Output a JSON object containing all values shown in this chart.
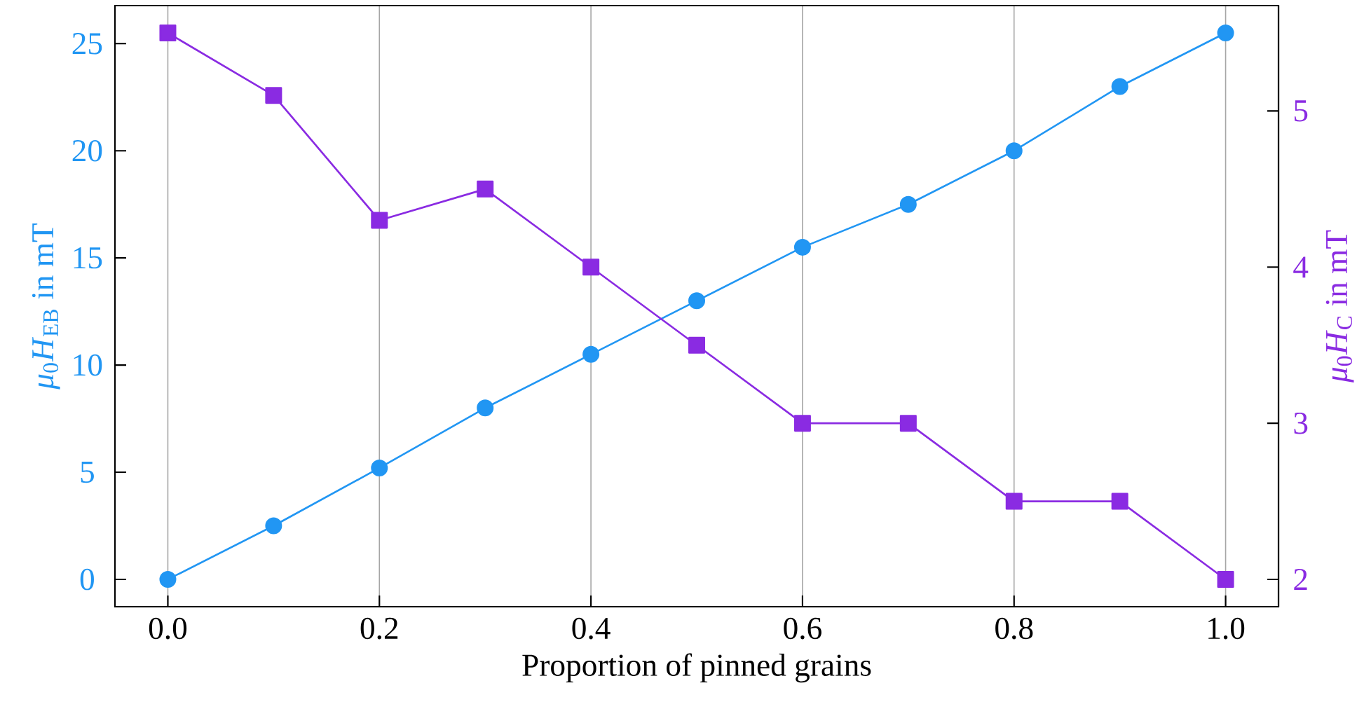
{
  "chart_data": {
    "type": "line",
    "xlabel": "Proportion of pinned grains",
    "ylabel": "*μ*$_{0}$*H*$_{EB}$ in mT",
    "y2label": "*μ*$_{0}$*H*$_{C}$ in mT",
    "x": [
      0.0,
      0.1,
      0.2,
      0.3,
      0.4,
      0.5,
      0.6,
      0.7,
      0.8,
      0.9,
      1.0
    ],
    "series": [
      {
        "color": "#2196f3",
        "marker": "circle",
        "values": [
          0,
          2.5,
          5.2,
          8.0,
          10.5,
          13.0,
          15.5,
          17.5,
          20.0,
          23.0,
          25.5
        ]
      },
      {
        "color": "#8a2be2",
        "marker": "square",
        "axis": "y2",
        "values": [
          5.5,
          5.1,
          4.3,
          4.5,
          4.0,
          3.5,
          3.0,
          3.0,
          2.5,
          2.5,
          2.0
        ]
      }
    ],
    "xlim": [
      -0.05,
      1.05
    ],
    "ylim": [
      -1.275,
      26.775
    ],
    "y2lim": [
      1.825,
      5.675
    ],
    "xticks": [
      {
        "value": 0,
        "label": "0.0"
      },
      0.2,
      0.4,
      0.6,
      0.8,
      {
        "value": 1,
        "label": "1.0"
      }
    ],
    "yticks": [
      0,
      5,
      10,
      15,
      20,
      25
    ],
    "y2ticks": [
      2,
      3,
      4,
      5
    ],
    "grid": "x",
    "line_style": "solid"
  }
}
